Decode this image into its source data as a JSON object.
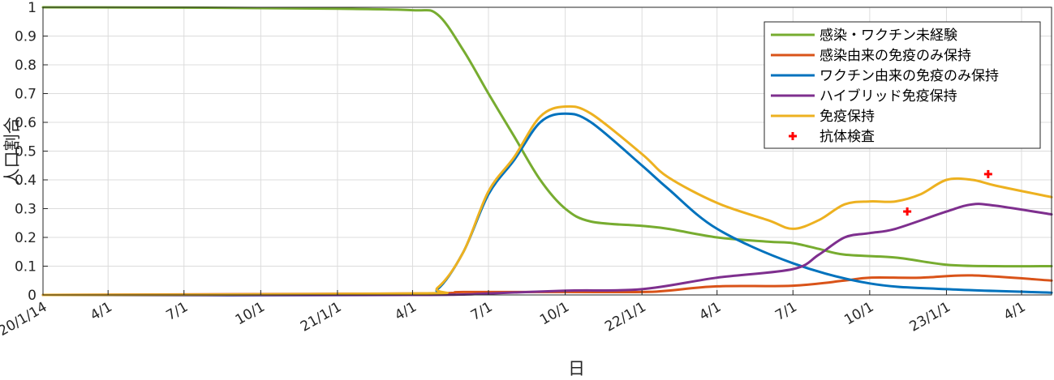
{
  "chart_data": {
    "type": "line",
    "xlabel": "日",
    "ylabel": "人口割合",
    "xlim": [
      "2020-01-14",
      "2023-05-07"
    ],
    "ylim": [
      0,
      1
    ],
    "grid": true,
    "legend_position": "top-right",
    "x_ticks": [
      {
        "date": "2020-01-14",
        "label": "20/1/14"
      },
      {
        "date": "2020-04-01",
        "label": "4/1"
      },
      {
        "date": "2020-07-01",
        "label": "7/1"
      },
      {
        "date": "2020-10-01",
        "label": "10/1"
      },
      {
        "date": "2021-01-01",
        "label": "21/1/1"
      },
      {
        "date": "2021-04-01",
        "label": "4/1"
      },
      {
        "date": "2021-07-01",
        "label": "7/1"
      },
      {
        "date": "2021-10-01",
        "label": "10/1"
      },
      {
        "date": "2022-01-01",
        "label": "22/1/1"
      },
      {
        "date": "2022-04-01",
        "label": "4/1"
      },
      {
        "date": "2022-07-01",
        "label": "7/1"
      },
      {
        "date": "2022-10-01",
        "label": "10/1"
      },
      {
        "date": "2023-01-01",
        "label": "23/1/1"
      },
      {
        "date": "2023-04-01",
        "label": "4/1"
      }
    ],
    "y_ticks": [
      0,
      0.1,
      0.2,
      0.3,
      0.4,
      0.5,
      0.6,
      0.7,
      0.8,
      0.9,
      1
    ],
    "series": [
      {
        "name": "感染・ワクチン未経験",
        "color": "#77ac30",
        "points": [
          [
            "2020-01-14",
            1.0
          ],
          [
            "2020-07-01",
            0.999
          ],
          [
            "2021-01-01",
            0.995
          ],
          [
            "2021-04-01",
            0.99
          ],
          [
            "2021-05-01",
            0.975
          ],
          [
            "2021-06-01",
            0.85
          ],
          [
            "2021-07-01",
            0.7
          ],
          [
            "2021-08-01",
            0.55
          ],
          [
            "2021-09-01",
            0.4
          ],
          [
            "2021-10-01",
            0.3
          ],
          [
            "2021-11-01",
            0.255
          ],
          [
            "2022-01-01",
            0.24
          ],
          [
            "2022-02-01",
            0.23
          ],
          [
            "2022-04-01",
            0.2
          ],
          [
            "2022-06-01",
            0.185
          ],
          [
            "2022-07-01",
            0.18
          ],
          [
            "2022-08-01",
            0.16
          ],
          [
            "2022-09-01",
            0.14
          ],
          [
            "2022-11-01",
            0.13
          ],
          [
            "2023-01-01",
            0.105
          ],
          [
            "2023-03-01",
            0.1
          ],
          [
            "2023-05-07",
            0.1
          ]
        ]
      },
      {
        "name": "感染由来の免疫のみ保持",
        "color": "#d95319",
        "points": [
          [
            "2020-01-14",
            0.0
          ],
          [
            "2021-04-01",
            0.005
          ],
          [
            "2021-06-01",
            0.01
          ],
          [
            "2021-10-01",
            0.01
          ],
          [
            "2022-01-01",
            0.01
          ],
          [
            "2022-02-01",
            0.015
          ],
          [
            "2022-04-01",
            0.03
          ],
          [
            "2022-07-01",
            0.032
          ],
          [
            "2022-09-01",
            0.05
          ],
          [
            "2022-10-01",
            0.06
          ],
          [
            "2022-12-01",
            0.06
          ],
          [
            "2023-02-01",
            0.068
          ],
          [
            "2023-05-07",
            0.05
          ]
        ]
      },
      {
        "name": "ワクチン由来の免疫のみ保持",
        "color": "#0072bd",
        "points": [
          [
            "2020-01-14",
            0.0
          ],
          [
            "2021-04-01",
            0.0
          ],
          [
            "2021-05-01",
            0.02
          ],
          [
            "2021-06-01",
            0.15
          ],
          [
            "2021-07-01",
            0.35
          ],
          [
            "2021-08-01",
            0.47
          ],
          [
            "2021-09-01",
            0.6
          ],
          [
            "2021-10-01",
            0.63
          ],
          [
            "2021-11-01",
            0.6
          ],
          [
            "2022-01-01",
            0.45
          ],
          [
            "2022-02-01",
            0.37
          ],
          [
            "2022-04-01",
            0.23
          ],
          [
            "2022-07-01",
            0.11
          ],
          [
            "2022-10-01",
            0.04
          ],
          [
            "2023-01-01",
            0.02
          ],
          [
            "2023-05-07",
            0.008
          ]
        ]
      },
      {
        "name": "ハイブリッド免疫保持",
        "color": "#7e2f8e",
        "points": [
          [
            "2020-01-14",
            0.0
          ],
          [
            "2021-04-01",
            0.0
          ],
          [
            "2021-07-01",
            0.005
          ],
          [
            "2021-10-01",
            0.015
          ],
          [
            "2022-01-01",
            0.02
          ],
          [
            "2022-04-01",
            0.06
          ],
          [
            "2022-07-01",
            0.09
          ],
          [
            "2022-08-01",
            0.14
          ],
          [
            "2022-09-01",
            0.2
          ],
          [
            "2022-10-01",
            0.215
          ],
          [
            "2022-11-01",
            0.23
          ],
          [
            "2023-01-01",
            0.29
          ],
          [
            "2023-02-01",
            0.315
          ],
          [
            "2023-03-01",
            0.31
          ],
          [
            "2023-05-07",
            0.28
          ]
        ]
      },
      {
        "name": "免疫保持",
        "color": "#edb120",
        "points": [
          [
            "2020-01-14",
            0.0
          ],
          [
            "2021-04-01",
            0.005
          ],
          [
            "2021-05-01",
            0.025
          ],
          [
            "2021-06-01",
            0.15
          ],
          [
            "2021-07-01",
            0.36
          ],
          [
            "2021-08-01",
            0.48
          ],
          [
            "2021-09-01",
            0.62
          ],
          [
            "2021-10-01",
            0.655
          ],
          [
            "2021-11-01",
            0.63
          ],
          [
            "2022-01-01",
            0.49
          ],
          [
            "2022-02-01",
            0.41
          ],
          [
            "2022-04-01",
            0.32
          ],
          [
            "2022-06-01",
            0.26
          ],
          [
            "2022-07-01",
            0.23
          ],
          [
            "2022-08-01",
            0.26
          ],
          [
            "2022-09-01",
            0.315
          ],
          [
            "2022-10-01",
            0.325
          ],
          [
            "2022-11-01",
            0.325
          ],
          [
            "2022-12-01",
            0.35
          ],
          [
            "2023-01-01",
            0.4
          ],
          [
            "2023-02-01",
            0.4
          ],
          [
            "2023-03-01",
            0.38
          ],
          [
            "2023-05-07",
            0.34
          ]
        ]
      }
    ],
    "markers": {
      "name": "抗体検査",
      "color": "#ff0000",
      "symbol": "+",
      "points": [
        [
          "2022-11-15",
          0.29
        ],
        [
          "2023-02-20",
          0.42
        ]
      ]
    }
  }
}
